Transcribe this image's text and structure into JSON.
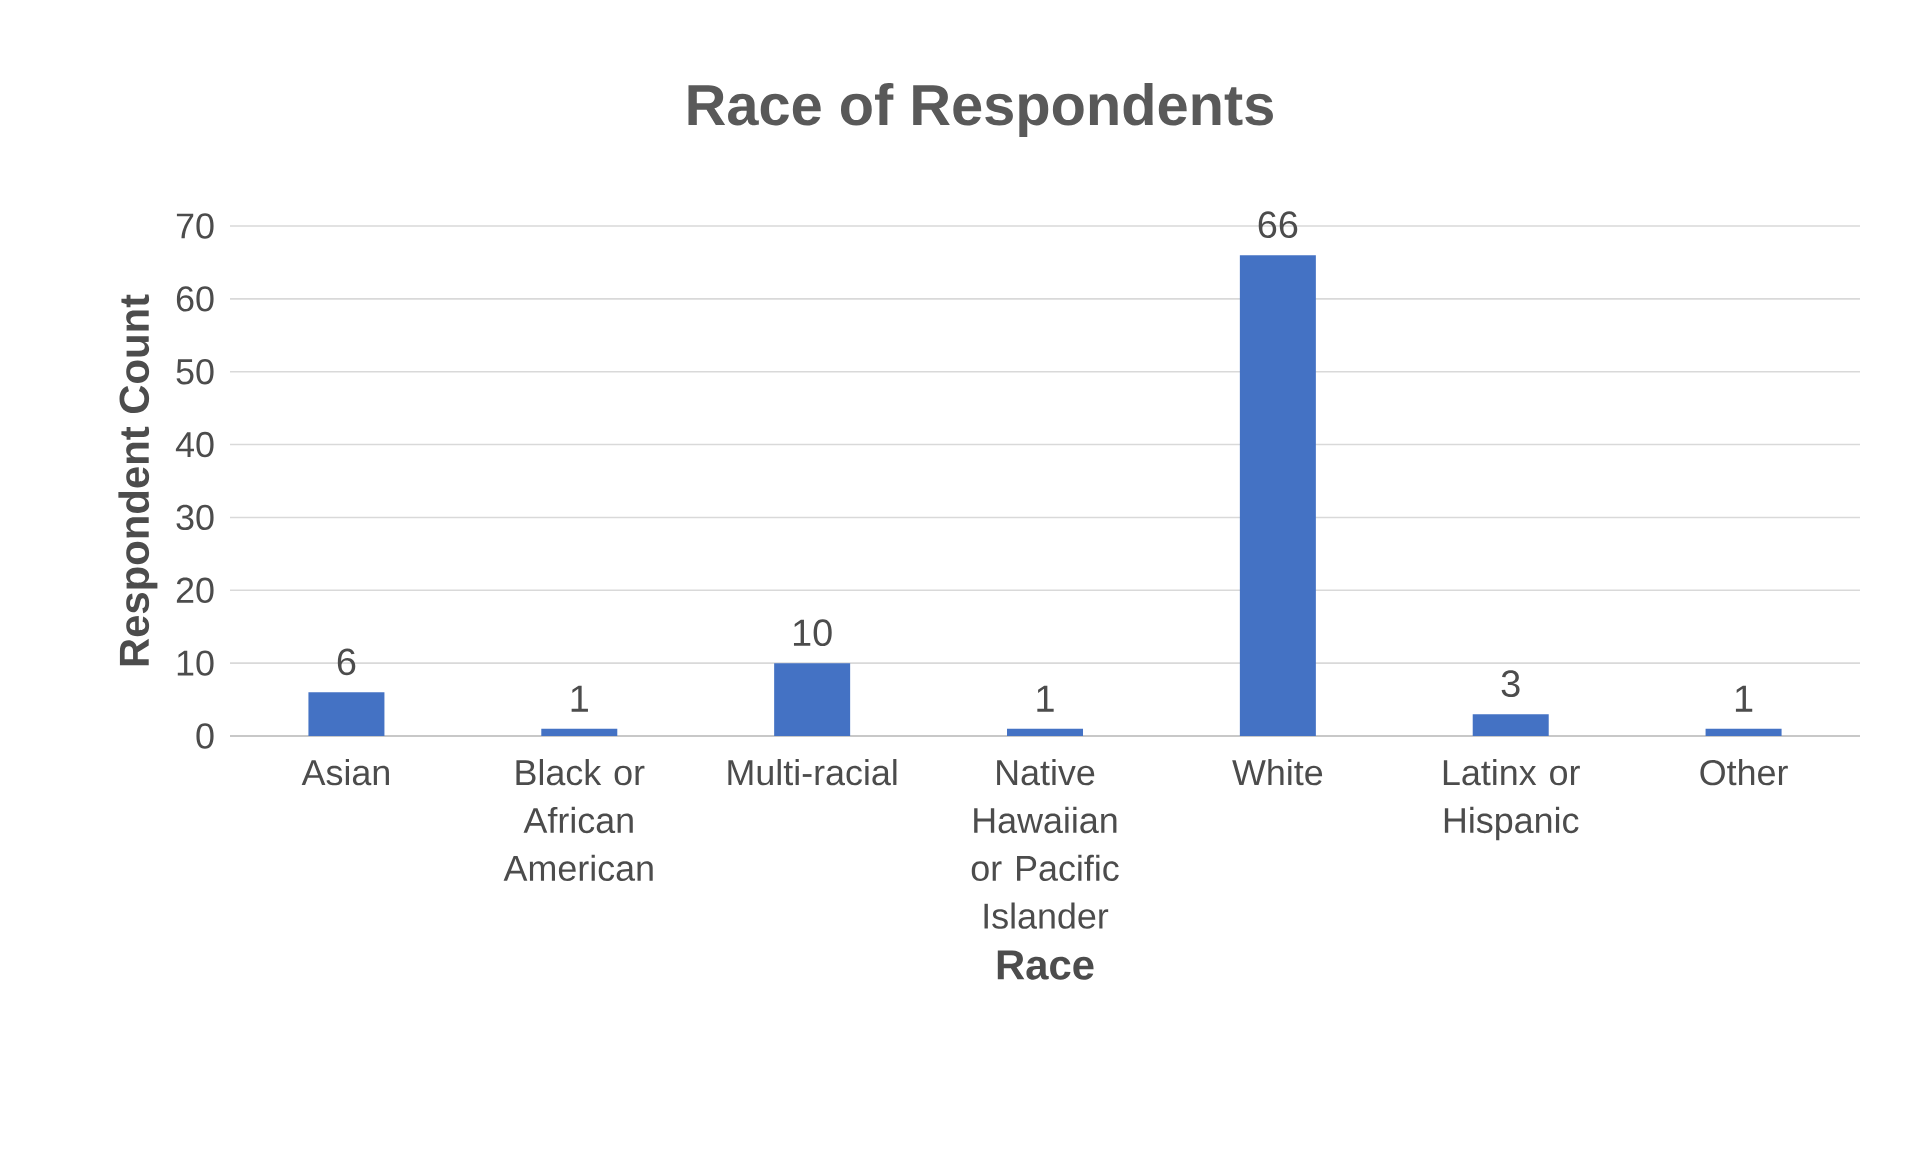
{
  "chart_data": {
    "type": "bar",
    "title": "Race of Respondents",
    "xlabel": "Race",
    "ylabel": "Respondent Count",
    "categories": [
      "Asian",
      "Black or African American",
      "Multi-racial",
      "Native Hawaiian or Pacific Islander",
      "White",
      "Latinx or Hispanic",
      "Other"
    ],
    "values": [
      6,
      1,
      10,
      1,
      66,
      3,
      1
    ],
    "color": "#4472c4",
    "ylim": [
      0,
      70
    ],
    "yticks": [
      0,
      10,
      20,
      30,
      40,
      50,
      60,
      70
    ],
    "grid": "y",
    "data_labels": true
  }
}
